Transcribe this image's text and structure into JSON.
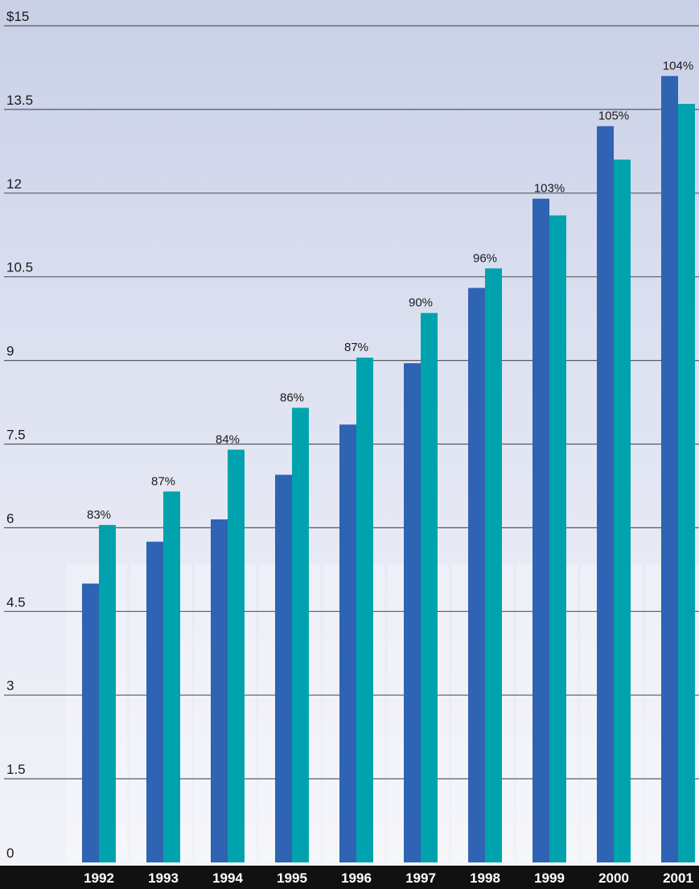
{
  "chart_data": {
    "type": "bar",
    "categories": [
      "1992",
      "1993",
      "1994",
      "1995",
      "1996",
      "1997",
      "1998",
      "1999",
      "2000",
      "2001"
    ],
    "series": [
      {
        "values": [
          5.0,
          5.75,
          6.15,
          6.95,
          7.85,
          8.95,
          10.3,
          11.9,
          13.2,
          14.1
        ]
      },
      {
        "values": [
          6.05,
          6.65,
          7.4,
          8.15,
          9.05,
          9.85,
          10.65,
          11.6,
          12.6,
          13.6
        ]
      }
    ],
    "data_labels": [
      "83%",
      "87%",
      "84%",
      "86%",
      "87%",
      "90%",
      "96%",
      "103%",
      "105%",
      "104%"
    ],
    "yticks": [
      "0",
      "1.5",
      "3",
      "4.5",
      "6",
      "7.5",
      "9",
      "10.5",
      "12",
      "13.5",
      "$15"
    ],
    "ylim": [
      0,
      15
    ],
    "grid": true,
    "colors": {
      "series1": "#2f63b3",
      "series2": "#00a3ad",
      "gridline": "#555a66",
      "axisbar": "#111111"
    }
  }
}
